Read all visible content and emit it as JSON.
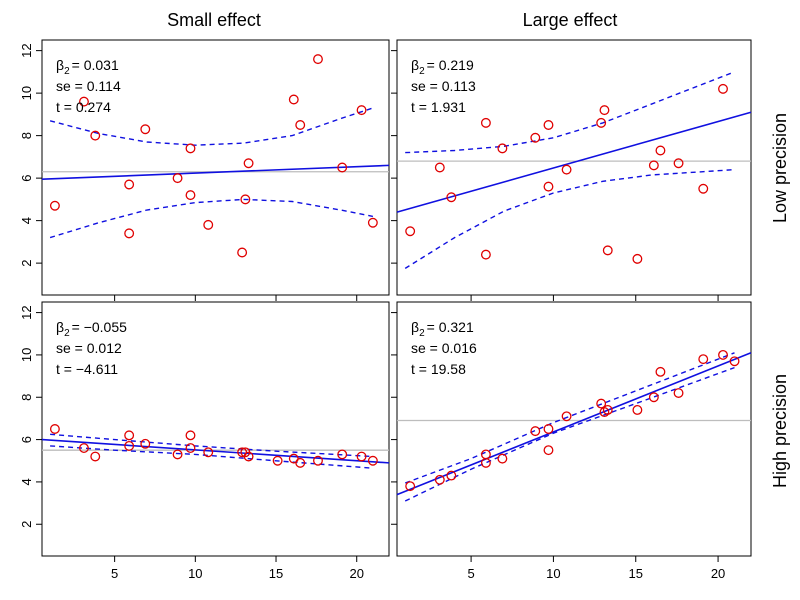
{
  "column_titles": [
    "Small effect",
    "Large effect"
  ],
  "row_titles": [
    "Low precision",
    "High precision"
  ],
  "chart_data": [
    {
      "type": "scatter",
      "panel": "small-effect-low-precision",
      "xlim": [
        0.5,
        22
      ],
      "ylim": [
        0.5,
        12.5
      ],
      "xticks": [
        5,
        10,
        15,
        20
      ],
      "yticks": [
        2,
        4,
        6,
        8,
        10,
        12
      ],
      "show_x_tick_labels": false,
      "show_y_tick_labels": true,
      "stats": {
        "beta_label": "β",
        "beta_sub": "2",
        "beta": "= 0.031",
        "se": "se = 0.114",
        "t": "t = 0.274"
      },
      "points": {
        "x": [
          1.3,
          3.1,
          3.8,
          5.9,
          5.9,
          6.9,
          8.9,
          9.7,
          9.7,
          10.8,
          12.9,
          13.1,
          13.3,
          16.1,
          16.5,
          17.6,
          19.1,
          20.3,
          21.0
        ],
        "y": [
          4.7,
          9.6,
          8.0,
          5.7,
          3.4,
          8.3,
          6.0,
          5.2,
          7.4,
          3.8,
          2.5,
          5.0,
          6.7,
          9.7,
          8.5,
          11.6,
          6.5,
          9.2,
          3.9
        ]
      },
      "mean_line": 6.3,
      "fit_line": {
        "x": [
          0.5,
          22
        ],
        "y": [
          5.95,
          6.6
        ]
      },
      "ci_upper": {
        "x": [
          1,
          4,
          7,
          10,
          13,
          16,
          19,
          21
        ],
        "y": [
          8.7,
          8.1,
          7.7,
          7.55,
          7.65,
          8.0,
          8.8,
          9.3
        ]
      },
      "ci_lower": {
        "x": [
          1,
          4,
          7,
          10,
          13,
          16,
          19,
          21
        ],
        "y": [
          3.2,
          3.9,
          4.5,
          4.85,
          5.0,
          4.9,
          4.5,
          4.2
        ]
      }
    },
    {
      "type": "scatter",
      "panel": "large-effect-low-precision",
      "xlim": [
        0.5,
        22
      ],
      "ylim": [
        0.5,
        12.5
      ],
      "xticks": [
        5,
        10,
        15,
        20
      ],
      "yticks": [
        2,
        4,
        6,
        8,
        10,
        12
      ],
      "show_x_tick_labels": false,
      "show_y_tick_labels": false,
      "stats": {
        "beta_label": "β",
        "beta_sub": "2",
        "beta": "= 0.219",
        "se": "se = 0.113",
        "t": "t = 1.931"
      },
      "points": {
        "x": [
          1.3,
          3.1,
          3.8,
          5.9,
          5.9,
          6.9,
          8.9,
          9.7,
          9.7,
          10.8,
          12.9,
          13.1,
          13.3,
          15.1,
          16.1,
          16.5,
          17.6,
          19.1,
          20.3
        ],
        "y": [
          3.5,
          6.5,
          5.1,
          8.6,
          2.4,
          7.4,
          7.9,
          8.5,
          5.6,
          6.4,
          8.6,
          9.2,
          2.6,
          2.2,
          6.6,
          7.3,
          6.7,
          5.5,
          10.2
        ]
      },
      "mean_line": 6.8,
      "fit_line": {
        "x": [
          0.5,
          22
        ],
        "y": [
          4.4,
          9.1
        ]
      },
      "ci_upper": {
        "x": [
          1,
          4,
          7,
          10,
          13,
          16,
          19,
          21
        ],
        "y": [
          7.2,
          7.3,
          7.5,
          7.9,
          8.6,
          9.5,
          10.4,
          11.0
        ]
      },
      "ci_lower": {
        "x": [
          1,
          4,
          7,
          10,
          13,
          16,
          19,
          21
        ],
        "y": [
          1.75,
          3.2,
          4.45,
          5.3,
          5.85,
          6.15,
          6.3,
          6.4
        ]
      }
    },
    {
      "type": "scatter",
      "panel": "small-effect-high-precision",
      "xlim": [
        0.5,
        22
      ],
      "ylim": [
        0.5,
        12.5
      ],
      "xticks": [
        5,
        10,
        15,
        20
      ],
      "yticks": [
        2,
        4,
        6,
        8,
        10,
        12
      ],
      "show_x_tick_labels": true,
      "show_y_tick_labels": true,
      "stats": {
        "beta_label": "β",
        "beta_sub": "2",
        "beta": "= −0.055",
        "se": "se = 0.012",
        "t": "t = −4.611"
      },
      "points": {
        "x": [
          1.3,
          3.1,
          3.8,
          5.9,
          5.9,
          6.9,
          8.9,
          9.7,
          9.7,
          10.8,
          12.9,
          13.1,
          13.3,
          15.1,
          16.1,
          16.5,
          17.6,
          19.1,
          20.3,
          21.0
        ],
        "y": [
          6.5,
          5.6,
          5.2,
          6.2,
          5.7,
          5.8,
          5.3,
          5.6,
          6.2,
          5.4,
          5.4,
          5.4,
          5.2,
          5.0,
          5.1,
          4.9,
          5.0,
          5.3,
          5.2,
          5.0
        ]
      },
      "mean_line": 5.5,
      "fit_line": {
        "x": [
          0.5,
          22
        ],
        "y": [
          6.0,
          4.9
        ]
      },
      "ci_upper": {
        "x": [
          1,
          5,
          10,
          15,
          21
        ],
        "y": [
          6.25,
          6.0,
          5.7,
          5.45,
          5.2
        ]
      },
      "ci_lower": {
        "x": [
          1,
          5,
          10,
          15,
          21
        ],
        "y": [
          5.7,
          5.5,
          5.3,
          5.0,
          4.65
        ]
      }
    },
    {
      "type": "scatter",
      "panel": "large-effect-high-precision",
      "xlim": [
        0.5,
        22
      ],
      "ylim": [
        0.5,
        12.5
      ],
      "xticks": [
        5,
        10,
        15,
        20
      ],
      "yticks": [
        2,
        4,
        6,
        8,
        10,
        12
      ],
      "show_x_tick_labels": true,
      "show_y_tick_labels": false,
      "stats": {
        "beta_label": "β",
        "beta_sub": "2",
        "beta": "= 0.321",
        "se": "se = 0.016",
        "t": "t = 19.58"
      },
      "points": {
        "x": [
          1.3,
          3.1,
          3.8,
          5.9,
          5.9,
          6.9,
          8.9,
          9.7,
          9.7,
          10.8,
          12.9,
          13.1,
          13.3,
          15.1,
          16.1,
          16.5,
          17.6,
          19.1,
          20.3,
          21.0
        ],
        "y": [
          3.8,
          4.1,
          4.3,
          5.3,
          4.9,
          5.1,
          6.4,
          6.5,
          5.5,
          7.1,
          7.7,
          7.3,
          7.4,
          7.4,
          8.0,
          9.2,
          8.2,
          9.8,
          10.0,
          9.7
        ]
      },
      "mean_line": 6.9,
      "fit_line": {
        "x": [
          0.5,
          22
        ],
        "y": [
          3.4,
          10.1
        ]
      },
      "ci_upper": {
        "x": [
          1,
          5,
          10,
          15,
          21
        ],
        "y": [
          3.95,
          5.1,
          6.8,
          8.3,
          10.1
        ]
      },
      "ci_lower": {
        "x": [
          1,
          5,
          10,
          15,
          21
        ],
        "y": [
          3.1,
          4.6,
          6.3,
          7.7,
          9.4
        ]
      }
    }
  ]
}
